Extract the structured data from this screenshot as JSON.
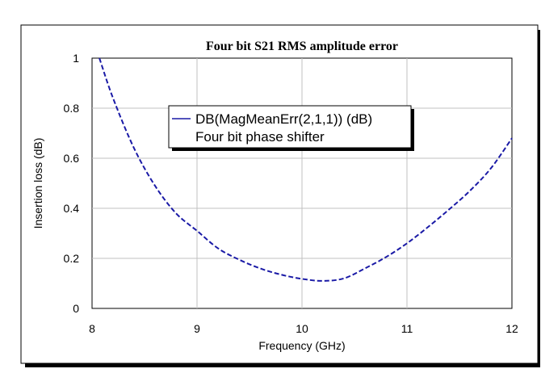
{
  "chart_data": {
    "type": "line",
    "title": "Four bit S21 RMS amplitude error",
    "xlabel": "Frequency (GHz)",
    "ylabel": "Insertion loss (dB)",
    "xlim": [
      8,
      12
    ],
    "ylim": [
      0,
      1
    ],
    "xticks": [
      "8",
      "9",
      "10",
      "11",
      "12"
    ],
    "yticks": [
      "0",
      "0.2",
      "0.4",
      "0.6",
      "0.8",
      "1"
    ],
    "grid": true,
    "legend": {
      "placement": "top-center",
      "lines": [
        "DB(MagMeanErr(2,1,1)) (dB)",
        "Four bit phase shifter"
      ]
    },
    "series": [
      {
        "name": "DB(MagMeanErr(2,1,1)) (dB)",
        "color": "#1a1aa6",
        "style": "dashed",
        "x": [
          8.07,
          8.2,
          8.4,
          8.6,
          8.8,
          9.0,
          9.2,
          9.4,
          9.6,
          9.8,
          10.0,
          10.2,
          10.4,
          10.6,
          10.8,
          11.0,
          11.2,
          11.4,
          11.6,
          11.8,
          12.0
        ],
        "y": [
          1.0,
          0.84,
          0.64,
          0.49,
          0.38,
          0.31,
          0.24,
          0.195,
          0.16,
          0.135,
          0.118,
          0.11,
          0.12,
          0.16,
          0.205,
          0.26,
          0.325,
          0.395,
          0.47,
          0.56,
          0.68
        ]
      }
    ]
  }
}
